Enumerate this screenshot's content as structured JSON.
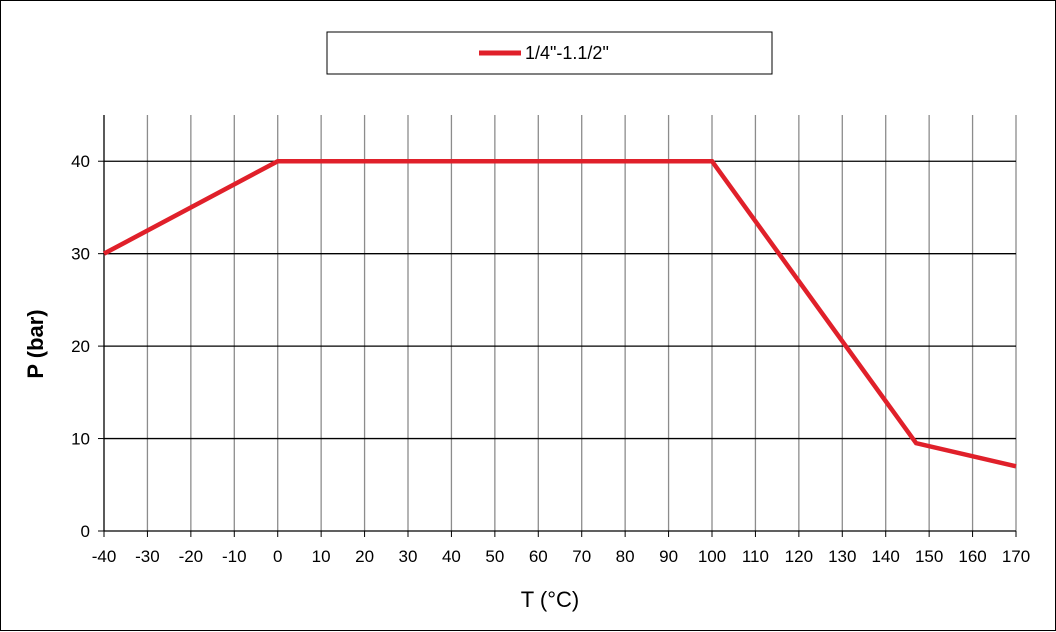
{
  "chart_data": {
    "type": "line",
    "xlabel": "T (°C)",
    "ylabel": "P (bar)",
    "xlim": [
      -40,
      170
    ],
    "ylim": [
      0,
      45
    ],
    "x_ticks": [
      -40,
      -30,
      -20,
      -10,
      0,
      10,
      20,
      30,
      40,
      50,
      60,
      70,
      80,
      90,
      100,
      110,
      120,
      130,
      140,
      150,
      160,
      170
    ],
    "y_ticks": [
      0,
      10,
      20,
      30,
      40
    ],
    "grid": true,
    "legend_position": "top-center",
    "series": [
      {
        "name": "1/4\"-1.1/2\"",
        "color": "#e0202a",
        "x": [
          -40,
          0,
          100,
          147,
          170
        ],
        "y": [
          30,
          40,
          40,
          9.5,
          7
        ]
      }
    ]
  }
}
